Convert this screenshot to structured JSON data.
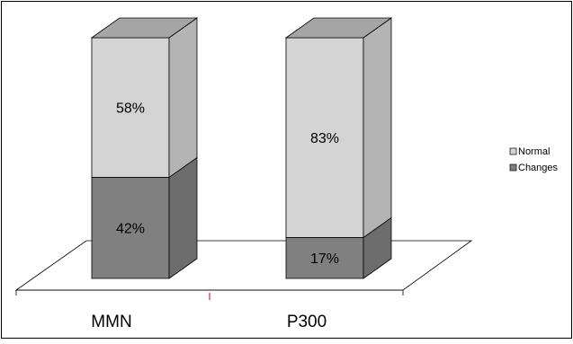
{
  "chart_data": {
    "type": "bar",
    "stacked": true,
    "style": "3d-stacked-percent",
    "categories": [
      "MMN",
      "P300"
    ],
    "series": [
      {
        "name": "Changes",
        "values": [
          42,
          17
        ],
        "labels": [
          "42%",
          "17%"
        ],
        "color": "#808080"
      },
      {
        "name": "Normal",
        "values": [
          58,
          83
        ],
        "labels": [
          "58%",
          "83%"
        ],
        "color": "#d4d4d4"
      }
    ],
    "ylim": [
      0,
      100
    ],
    "grid": false,
    "legend": {
      "position": "right",
      "items": [
        {
          "label": "Normal",
          "color": "#d4d4d4"
        },
        {
          "label": "Changes",
          "color": "#808080"
        }
      ]
    }
  }
}
